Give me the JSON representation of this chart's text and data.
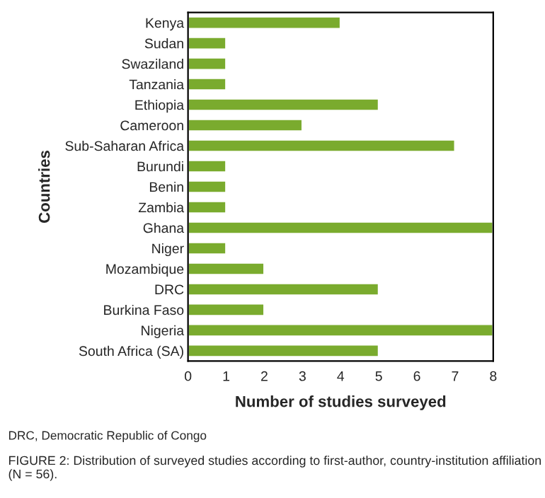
{
  "chart_data": {
    "type": "bar",
    "orientation": "horizontal",
    "xlabel": "Number of studies surveyed",
    "ylabel": "Countries",
    "categories": [
      "Kenya",
      "Sudan",
      "Swaziland",
      "Tanzania",
      "Ethiopia",
      "Cameroon",
      "Sub-Saharan Africa",
      "Burundi",
      "Benin",
      "Zambia",
      "Ghana",
      "Niger",
      "Mozambique",
      "DRC",
      "Burkina Faso",
      "Nigeria",
      "South Africa (SA)"
    ],
    "values": [
      4,
      1,
      1,
      1,
      5,
      3,
      7,
      1,
      1,
      1,
      8,
      1,
      2,
      5,
      2,
      8,
      5
    ],
    "color": "#7aab2e",
    "xlim": [
      0,
      8
    ],
    "xticks": [
      0,
      1,
      2,
      3,
      4,
      5,
      6,
      7,
      8
    ],
    "grid": false,
    "annotations": [
      "DRC, Democratic Republic of Congo",
      "FIGURE 2: Distribution of surveyed studies according to first-author, country-institution affiliation (N = 56)."
    ]
  }
}
